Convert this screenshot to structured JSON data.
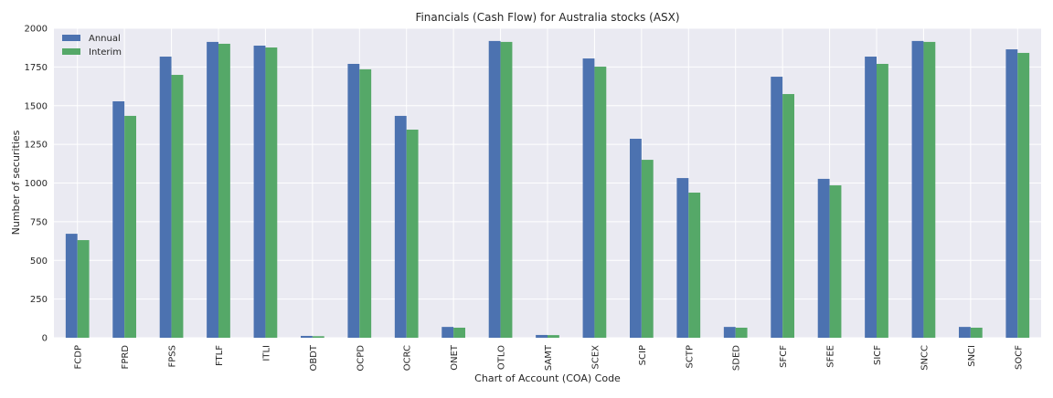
{
  "chart_data": {
    "type": "bar",
    "title": "Financials (Cash Flow) for Australia stocks (ASX)",
    "xlabel": "Chart of Account (COA) Code",
    "ylabel": "Number of securities",
    "ylim": [
      0,
      2000
    ],
    "yticks": [
      0,
      250,
      500,
      750,
      1000,
      1250,
      1500,
      1750,
      2000
    ],
    "grid": true,
    "legend_position": "top-left",
    "categories": [
      "FCDP",
      "FPRD",
      "FPSS",
      "FTLF",
      "ITLI",
      "OBDT",
      "OCPD",
      "OCRC",
      "ONET",
      "OTLO",
      "SAMT",
      "SCEX",
      "SCIP",
      "SCTP",
      "SDED",
      "SFCF",
      "SFEE",
      "SICF",
      "SNCC",
      "SNCI",
      "SOCF"
    ],
    "series": [
      {
        "name": "Annual",
        "color": "#4c72b0",
        "values": [
          672,
          1528,
          1817,
          1912,
          1888,
          12,
          1770,
          1434,
          70,
          1918,
          18,
          1805,
          1286,
          1032,
          70,
          1687,
          1027,
          1817,
          1918,
          70,
          1864
        ]
      },
      {
        "name": "Interim",
        "color": "#55a868",
        "values": [
          631,
          1434,
          1699,
          1900,
          1876,
          10,
          1735,
          1345,
          65,
          1912,
          17,
          1752,
          1150,
          938,
          65,
          1575,
          985,
          1770,
          1912,
          65,
          1841
        ]
      }
    ]
  }
}
